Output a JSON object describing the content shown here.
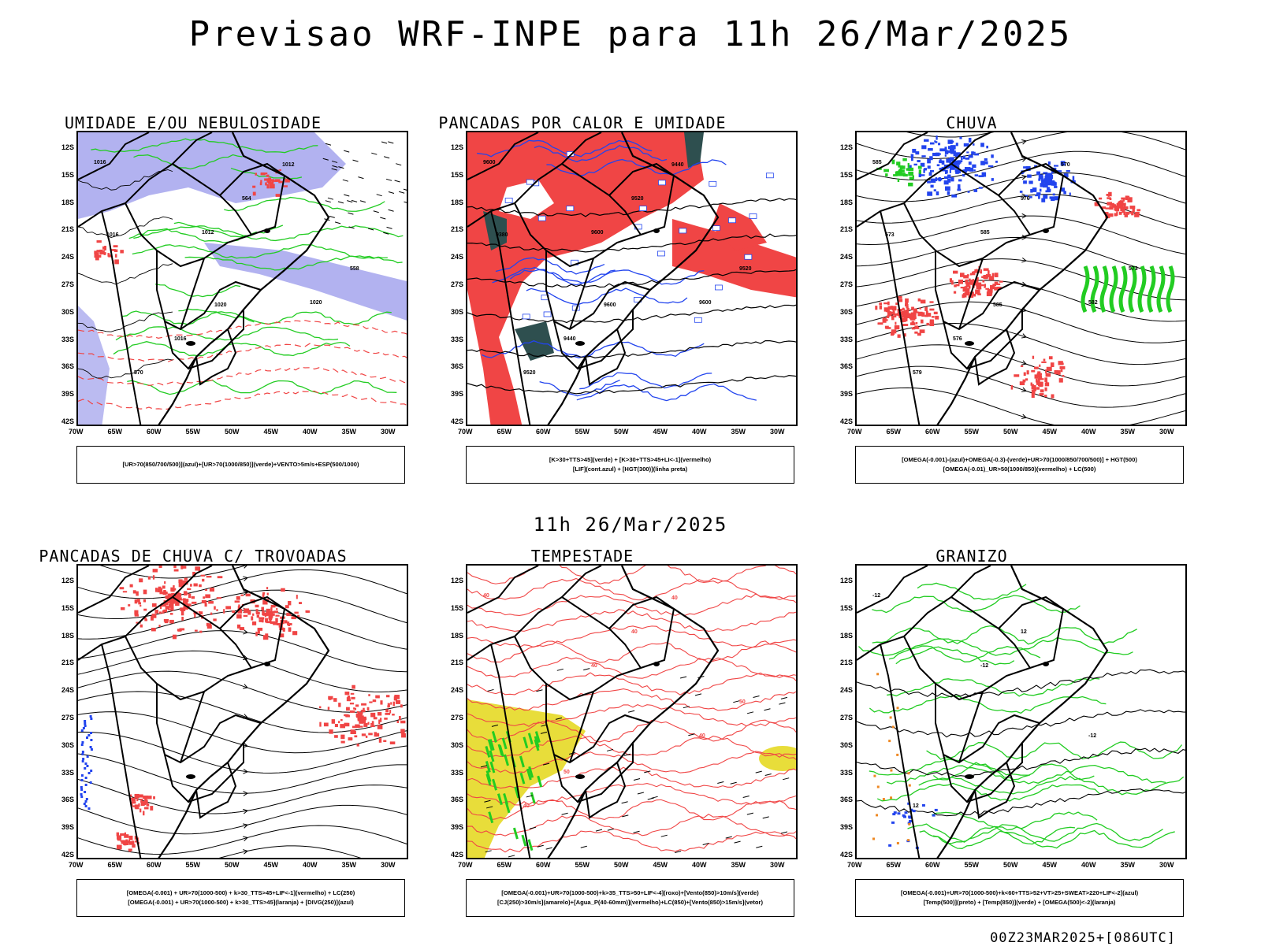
{
  "title": "Previsao WRF-INPE  para 11h 26/Mar/2025",
  "mid_title": "11h 26/Mar/2025",
  "footer": "00Z23MAR2025+[086UTC]",
  "axes": {
    "y_labels": [
      "12S",
      "15S",
      "18S",
      "21S",
      "24S",
      "27S",
      "30S",
      "33S",
      "36S",
      "39S",
      "42S"
    ],
    "x_labels": [
      "70W",
      "65W",
      "60W",
      "55W",
      "50W",
      "45W",
      "40W",
      "35W",
      "30W"
    ]
  },
  "colors": {
    "blue_fill": "#aaaaee",
    "red": "#f04545",
    "green": "#22cc22",
    "blue": "#2244ee",
    "dark_teal": "#2e4f4f",
    "yellow": "#e8dd3a",
    "orange": "#ee8822"
  },
  "panels": [
    {
      "title": "UMIDADE E/OU NEBULOSIDADE",
      "legend": [
        "[UR>70(850/700/500)](azul)+[UR>70(1000/850)](verde)+VENTO>5m/s+ESP(500/1000)"
      ],
      "labels": [
        "1016",
        "1012",
        "1020",
        "570",
        "564",
        "558",
        "1016",
        "1012",
        "1016",
        "1020"
      ]
    },
    {
      "title": "PANCADAS POR CALOR E UMIDADE",
      "legend": [
        "[K>30+TTS>45](verde)  +  [K>30+TTS>45+LI<-1](vermelho)",
        "[LIF](cont.azul)  +  [HGT(300)](linha preta)"
      ],
      "labels": [
        "9600",
        "9600",
        "9600",
        "9520",
        "9520",
        "9520",
        "9440",
        "9440",
        "9380",
        "9600"
      ]
    },
    {
      "title": "CHUVA",
      "legend": [
        "[OMEGA(-0.001)-(azul)+OMEGA(-0.3)-(verde)+UR>70(1000/850/700/500)]  +  HGT(500)",
        "[OMEGA(-0.01)_UR>50(1000/850)(vermelho)  +  LC(500)"
      ],
      "labels": [
        "585",
        "585",
        "582",
        "579",
        "576",
        "573",
        "576",
        "570",
        "573",
        "585"
      ]
    },
    {
      "title": "PANCADAS DE CHUVA C/ TROVOADAS",
      "legend": [
        "[OMEGA(-0.001)  +  UR>70(1000-500)  +  k>30_TTS>45+LIF<-1](vermelho)  +  LC(250)",
        "[OMEGA(-0.001)  +  UR>70(1000-500)  +  k>30_TTS>45](laranja)  +  [DIVG(250)](azul)"
      ],
      "labels": []
    },
    {
      "title": "TEMPESTADE",
      "legend": [
        "[OMEGA(-0.001)+UR>70(1000-500)+k>35_TTS>50+LIF<-4](roxo)+[Vento(850)>10m/s](verde)",
        "[CJ(250)>30m/s](amarelo)+[Agua_P(40-60mm)](vermelho)+LC(850)+[Vento(850)>15m/s](vetor)"
      ],
      "labels": [
        "40",
        "40",
        "40",
        "40",
        "40",
        "50",
        "50",
        "40"
      ]
    },
    {
      "title": "GRANIZO",
      "legend": [
        "[OMEGA(-0.001)+UR>70(1000-500)+k<60+TTS>52+VT>25+SWEAT>220+LIF<-2](azul)",
        "[Temp(500)](preto)  +  [Temp(850)](verde)  +  [OMEGA(500)<-2](laranja)"
      ],
      "labels": [
        "-12",
        "-12",
        "-12",
        "12",
        "12"
      ]
    }
  ]
}
